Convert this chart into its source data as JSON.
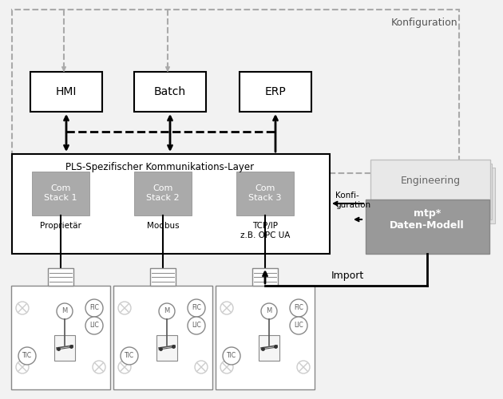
{
  "bg_color": "#f2f2f2",
  "white": "#ffffff",
  "box_gray": "#aaaaaa",
  "mtp_bg": "#999999",
  "mtp_shadow1": "#cccccc",
  "mtp_shadow2": "#bbbbbb",
  "engineering_bg": "#e8e8e8",
  "konfiguration_text": "Konfiguration",
  "kommunikation_text": "PLS-Spezifischer Kommunikations-Layer",
  "hmi_text": "HMI",
  "batch_text": "Batch",
  "erp_text": "ERP",
  "com1_text": "Com\nStack 1",
  "com2_text": "Com\nStack 2",
  "com3_text": "Com\nStack 3",
  "prop_text": "Proprietär",
  "modbus_text": "Modbus",
  "tcpip_text": "TCP/IP\nz.B. OPC UA",
  "engineering_text": "Engineering",
  "mtp_text": "mtp*\nDaten-Modell",
  "konfi_text": "Konfi-\nguration",
  "import_text": "Import"
}
